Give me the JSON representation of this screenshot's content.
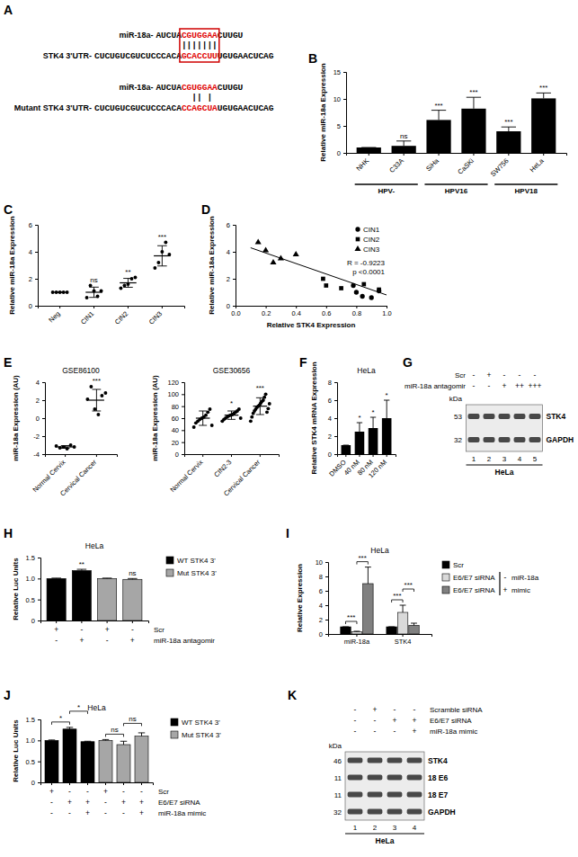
{
  "panel_labels": [
    "A",
    "B",
    "C",
    "D",
    "E",
    "F",
    "G",
    "H",
    "I",
    "J",
    "K"
  ],
  "diagram": {
    "pairs": [
      {
        "mirna_label": "miR-18a-",
        "mirna": [
          "AUCUA",
          "CGUGGAA",
          "CUUGU"
        ],
        "bonds": "|||||||",
        "target_label": "STK4 3'UTR-",
        "target": [
          "CUCUGUCGUCUCCCACA",
          "GCACCUU",
          "UGUGAACUCAG"
        ]
      },
      {
        "mirna_label": "miR-18a-",
        "mirna": [
          "AUCUA",
          "CGUGGAA",
          "CUUGU"
        ],
        "bonds": "  || |",
        "target_label": "Mutant STK4 3'UTR-",
        "target": [
          "CUCUGUCGUCUCCCACA",
          "CCAGCUA",
          "UGUGAACUCAG"
        ]
      }
    ]
  },
  "blots": [
    {
      "rows": [
        {
          "label": "Scr",
          "signs": [
            "-",
            "+",
            "-",
            "-",
            "-"
          ]
        },
        {
          "label": "miR-18a antagomir",
          "signs": [
            "-",
            "-",
            "+",
            "++",
            "+++"
          ]
        }
      ],
      "unit": "kDa",
      "proteins": [
        {
          "name": "STK4",
          "kda": 53
        },
        {
          "name": "GAPDH",
          "kda": 32
        }
      ],
      "lanes": [
        1,
        2,
        3,
        4,
        5
      ],
      "cell_line": "HeLa"
    },
    {
      "rows": [
        {
          "label": "Scramble siRNA",
          "signs": [
            "-",
            "+",
            "-",
            "-"
          ]
        },
        {
          "label": "E6/E7 siRNA",
          "signs": [
            "-",
            "-",
            "+",
            "+"
          ]
        },
        {
          "label": "miR-18a mimic",
          "signs": [
            "-",
            "-",
            "-",
            "+"
          ]
        }
      ],
      "unit": "kDa",
      "proteins": [
        {
          "name": "STK4",
          "kda": 46
        },
        {
          "name": "18 E6",
          "kda": 11
        },
        {
          "name": "18 E7",
          "kda": 11
        },
        {
          "name": "GAPDH",
          "kda": 32
        }
      ],
      "lanes": [
        1,
        2,
        3,
        4
      ],
      "cell_line": "HeLa"
    }
  ],
  "chart_data": [
    {
      "type": "bar",
      "y_label": "Relative miR-18a Expression",
      "categories": [
        "NHK",
        "C33A",
        "SiHa",
        "CaSKi",
        "SW756",
        "HeLa"
      ],
      "values": [
        1,
        1.3,
        6.1,
        8.2,
        4.0,
        10.1
      ],
      "errors": [
        0,
        0.9,
        1.8,
        2.1,
        0.8,
        1.0
      ],
      "annotations": [
        null,
        "ns",
        "***",
        "***",
        "***",
        "***"
      ],
      "groups": [
        {
          "label": "HPV-",
          "from": 0,
          "to": 1
        },
        {
          "label": "HPV16",
          "from": 2,
          "to": 3
        },
        {
          "label": "HPV18",
          "from": 4,
          "to": 5
        }
      ],
      "color": "#000000",
      "ylim": [
        0,
        15
      ],
      "yticks": [
        0,
        5,
        10,
        15
      ]
    },
    {
      "type": "scatter",
      "y_label": "Relative miR-18a Expression",
      "categories": [
        "Neg",
        "CIN1",
        "CIN2",
        "CIN3"
      ],
      "points": [
        [
          1,
          1,
          1,
          1,
          1
        ],
        [
          0.6,
          1.5,
          1.1,
          0.7,
          1.1
        ],
        [
          1.3,
          1.5,
          1.6,
          2.0,
          2.1
        ],
        [
          2.8,
          3.2,
          4.0,
          4.7,
          3.8
        ]
      ],
      "values": [
        1,
        1.0,
        1.7,
        3.7
      ],
      "errors": [
        0,
        0.38,
        0.33,
        0.75
      ],
      "annotations": [
        null,
        "ns",
        "**",
        "***"
      ],
      "color": "#000000",
      "marker": "circle",
      "ylim": [
        0,
        6
      ],
      "yticks": [
        0,
        2,
        4,
        6
      ]
    },
    {
      "type": "scatter",
      "x_label": "Relative STK4 Expression",
      "y_label": "Relative miR-18a Expression",
      "series": [
        {
          "name": "CIN1",
          "marker": "circle",
          "color": "#000000",
          "x": [
            0.84,
            0.95,
            0.78,
            0.8,
            0.9
          ],
          "values": [
            0.7,
            1.1,
            1.5,
            1.0,
            0.6
          ]
        },
        {
          "name": "CIN2",
          "marker": "square",
          "color": "#000000",
          "x": [
            0.58,
            0.6,
            0.7,
            0.85,
            0.95
          ],
          "values": [
            2.0,
            1.5,
            1.3,
            1.6,
            1.2
          ]
        },
        {
          "name": "CIN3",
          "marker": "triangle",
          "color": "#000000",
          "x": [
            0.15,
            0.2,
            0.3,
            0.25,
            0.4
          ],
          "values": [
            4.7,
            4.1,
            3.5,
            3.2,
            3.8
          ]
        }
      ],
      "trend_line": {
        "x": [
          0.1,
          1.0
        ],
        "values": [
          4.3,
          0.8
        ]
      },
      "annotations": [
        "R = -0.9223",
        "p <0.0001"
      ],
      "legend": "top-right",
      "xlim": [
        0,
        1
      ],
      "xticks": [
        {
          "value": 0,
          "label": "0.0"
        },
        0.2,
        0.4,
        0.6,
        0.8,
        {
          "value": 1,
          "label": "1.0"
        }
      ],
      "ylim": [
        0,
        6
      ],
      "yticks": [
        0,
        2,
        4,
        6
      ]
    },
    {
      "type": "scatter",
      "title": "GSE86100",
      "y_label": "miR-18a Expression (AU)",
      "categories": [
        "Normal Cervix",
        "Cervical Cancer"
      ],
      "points": [
        [
          -3.1,
          -3.3,
          -3.2,
          -3.4,
          -3.0,
          -3.2
        ],
        [
          2.1,
          3.5,
          1.0,
          0.4,
          2.5,
          2.8
        ]
      ],
      "values": [
        -3.2,
        2.0
      ],
      "errors": [
        0.15,
        1.2
      ],
      "annotations": [
        null,
        "***"
      ],
      "color": "#000000",
      "marker": "circle",
      "ylim": [
        -4,
        4
      ],
      "yticks": [
        -4,
        -2,
        0,
        2,
        4
      ]
    },
    {
      "type": "scatter",
      "title": "GSE30656",
      "y_label": "miR-18a Expression (AU)",
      "categories": [
        "Normal Cervix",
        "CIN2-3",
        "Cervical Cancer"
      ],
      "points": [
        [
          45,
          52,
          55,
          58,
          60,
          62,
          65,
          70,
          75,
          48
        ],
        [
          55,
          58,
          60,
          62,
          64,
          65,
          66,
          68,
          70,
          72,
          75,
          60
        ],
        [
          55,
          62,
          68,
          72,
          75,
          78,
          80,
          82,
          85,
          88,
          90,
          95,
          100,
          70,
          76,
          84
        ]
      ],
      "values": [
        60,
        65,
        80
      ],
      "errors": [
        12,
        7,
        14
      ],
      "annotations": [
        null,
        "*",
        "***"
      ],
      "color": "#000000",
      "marker": "circle",
      "ylim": [
        0,
        120
      ],
      "yticks": [
        0,
        20,
        40,
        60,
        80,
        100,
        120
      ]
    },
    {
      "type": "bar",
      "title": "HeLa",
      "y_label": "Relative STK4 mRNA Expression",
      "categories": [
        "DMSO",
        "40 nM",
        "80 nM",
        "120 nM"
      ],
      "values": [
        1,
        2.5,
        2.9,
        4.0
      ],
      "errors": [
        0,
        1.0,
        1.2,
        2.0
      ],
      "annotations": [
        null,
        "*",
        "*",
        "*"
      ],
      "color": "#000000",
      "ylim": [
        0,
        8
      ],
      "yticks": [
        0,
        2,
        4,
        6,
        8
      ]
    },
    {
      "type": "bar",
      "title": "HeLa",
      "y_label": "Relative Luc Units",
      "categories": [
        null,
        null,
        null,
        null
      ],
      "series": [
        {
          "name": "WT STK4 3'",
          "color": "#000000",
          "values": [
            1,
            1.19,
            null,
            null
          ],
          "errors": [
            0.01,
            0.03,
            null,
            null
          ]
        },
        {
          "name": "Mut STK4 3'",
          "color": "#a6a6a6",
          "values": [
            null,
            null,
            1,
            0.98
          ],
          "errors": [
            null,
            null,
            0.01,
            0.02
          ]
        }
      ],
      "annotations": [
        null,
        "**",
        null,
        "ns"
      ],
      "conditions": [
        {
          "label": "Scr",
          "signs": [
            "+",
            "-",
            "+",
            "-"
          ]
        },
        {
          "label": "miR-18a antagomir",
          "signs": [
            "-",
            "+",
            "-",
            "+"
          ]
        }
      ],
      "legend": "right",
      "ylim": [
        0,
        1.5
      ],
      "yticks": [
        0,
        0.5,
        {
          "value": 1,
          "label": "1.0"
        },
        1.5
      ]
    },
    {
      "type": "bar",
      "title": "HeLa",
      "y_label": "Relative Expression",
      "categories": [
        "miR-18a",
        "STK4"
      ],
      "series": [
        {
          "name": "Scr",
          "color": "#000000",
          "values": [
            1,
            1
          ],
          "errors": [
            0,
            0
          ]
        },
        {
          "name": "E6/E7 siRNA",
          "color": "#d9d9d9",
          "values": [
            0.3,
            3.0
          ],
          "errors": [
            0.08,
            1.0
          ]
        },
        {
          "name": "E6/E7 siRNA",
          "color": "#808080",
          "values": [
            7.0,
            1.2
          ],
          "errors": [
            2.3,
            0.3
          ]
        }
      ],
      "brackets": [
        {
          "text": "***",
          "category": 0,
          "series": [
            0,
            1
          ]
        },
        {
          "text": "***",
          "category": 0,
          "series": [
            1,
            2
          ]
        },
        {
          "text": "***",
          "category": 1,
          "series": [
            0,
            1
          ]
        },
        {
          "text": "***",
          "category": 1,
          "series": [
            1,
            2
          ]
        }
      ],
      "legend_note": {
        "signs": [
          "-",
          "+"
        ],
        "labels": [
          "miR-18a",
          "mimic"
        ]
      },
      "legend": "right",
      "ylim": [
        0,
        10
      ],
      "yticks": [
        0,
        2,
        4,
        6,
        8,
        10
      ]
    },
    {
      "type": "bar",
      "title": "HeLa",
      "y_label": "Relative Luc Units",
      "categories": [
        null,
        null,
        null,
        null,
        null,
        null
      ],
      "series": [
        {
          "name": "WT STK4 3'",
          "color": "#000000",
          "values": [
            1,
            1.27,
            0.97,
            null,
            null,
            null
          ],
          "errors": [
            0.01,
            0.04,
            0.01,
            null,
            null,
            null
          ]
        },
        {
          "name": "Mut STK4 3'",
          "color": "#a6a6a6",
          "values": [
            null,
            null,
            null,
            1,
            0.9,
            1.1
          ],
          "errors": [
            null,
            null,
            null,
            0.02,
            0.08,
            0.08
          ]
        }
      ],
      "brackets": [
        {
          "text": "*",
          "positions": [
            0,
            1
          ]
        },
        {
          "text": "*",
          "positions": [
            1,
            2
          ]
        },
        {
          "text": "ns",
          "positions": [
            3,
            4
          ]
        },
        {
          "text": "ns",
          "positions": [
            4,
            5
          ]
        }
      ],
      "conditions": [
        {
          "label": "Scr",
          "signs": [
            "+",
            "-",
            "-",
            "+",
            "-",
            "-"
          ]
        },
        {
          "label": "E6/E7 siRNA",
          "signs": [
            "-",
            "+",
            "+",
            "-",
            "+",
            "+"
          ]
        },
        {
          "label": "miR-18a mimic",
          "signs": [
            "-",
            "-",
            "+",
            "-",
            "-",
            "+"
          ]
        }
      ],
      "legend": "right",
      "ylim": [
        0,
        1.5
      ],
      "yticks": [
        0,
        0.5,
        {
          "value": 1,
          "label": "1.0"
        },
        1.5
      ]
    }
  ]
}
